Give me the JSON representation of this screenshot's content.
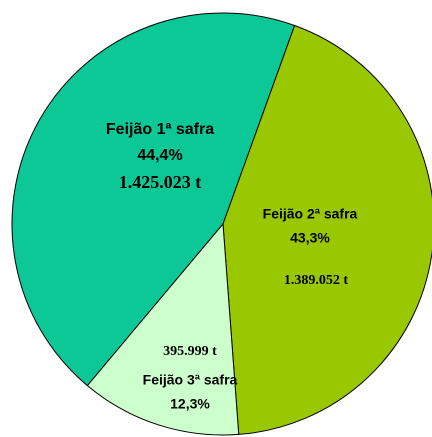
{
  "chart_data": {
    "type": "pie",
    "categories": [
      "Feijão 1ª safra",
      "Feijão 2ª safra",
      "Feijão 3ª safra"
    ],
    "values": [
      44.4,
      43.3,
      12.3
    ],
    "value_labels": [
      "44,4%",
      "43,3%",
      "12,3%"
    ],
    "amount_labels": [
      "1.425.023 t",
      "1.389.052 t",
      "395.999 t"
    ],
    "colors": [
      "#0cc896",
      "#99c800",
      "#ccffcc"
    ]
  }
}
